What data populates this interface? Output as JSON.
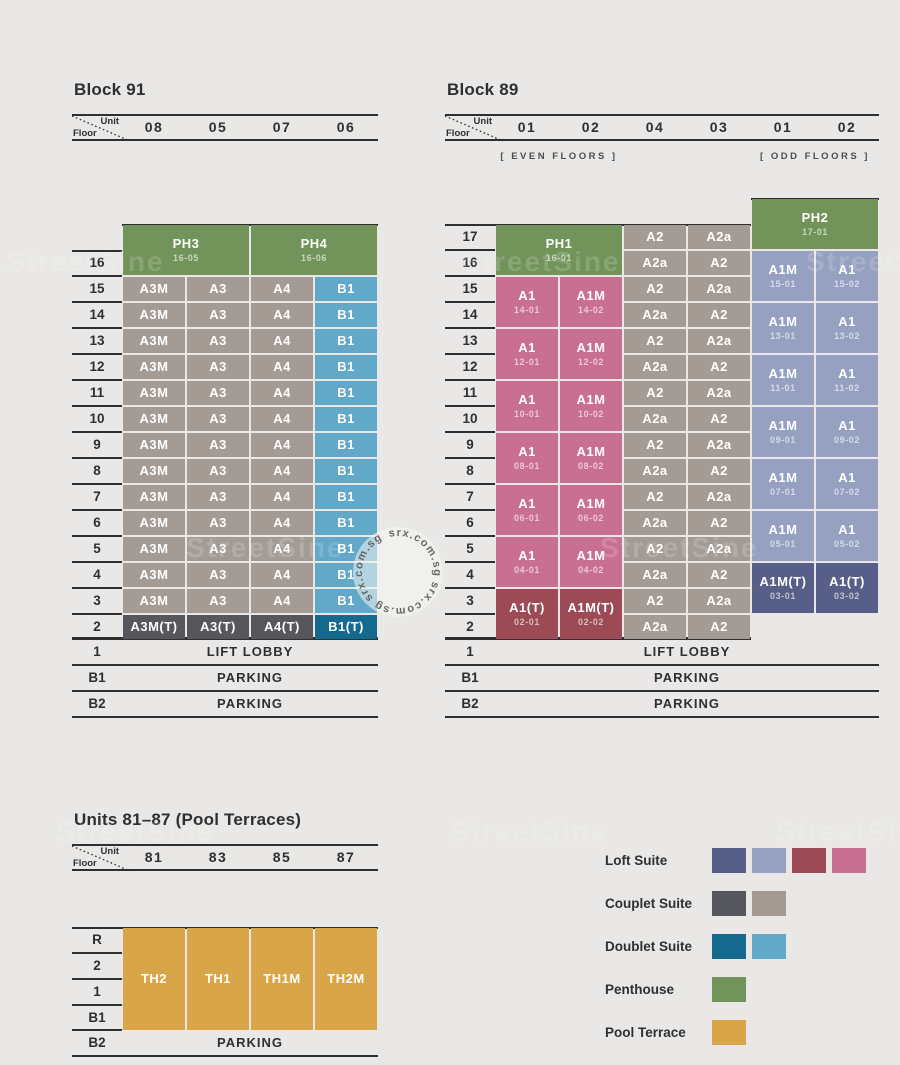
{
  "page": {
    "background": "#e9e8e6"
  },
  "palette": {
    "loft_dark_blue": "#575f88",
    "loft_light_blue": "#96a0c1",
    "loft_dark_red": "#9c4a55",
    "loft_pink": "#c96f91",
    "couplet_dark": "#56575c",
    "couplet_light": "#a49b95",
    "doublet_dark": "#14698f",
    "doublet_light": "#61a8c9",
    "penthouse": "#72935a",
    "pool_terrace": "#d8a548",
    "line": "#2f2f2f"
  },
  "corner": {
    "top": "Unit",
    "bottom": "Floor"
  },
  "watermark": {
    "stamp_text": "srx.com.sg",
    "background_text": "StreetSine"
  },
  "blocks": [
    {
      "id": "block91",
      "title": "Block 91",
      "units": [
        "08",
        "05",
        "07",
        "06"
      ],
      "floors": [
        "16",
        "15",
        "14",
        "13",
        "12",
        "11",
        "10",
        "9",
        "8",
        "7",
        "6",
        "5",
        "4",
        "3",
        "2"
      ],
      "cells": [
        {
          "label": "PH3",
          "sub": "16-05",
          "color": "penthouse",
          "col": 1,
          "colspan": 2,
          "row": 0,
          "rowspan": 2
        },
        {
          "label": "PH4",
          "sub": "16-06",
          "color": "penthouse",
          "col": 3,
          "colspan": 2,
          "row": 0,
          "rowspan": 2
        },
        {
          "label": "A3M(T)",
          "color": "couplet_dark",
          "col": 1,
          "row": 15
        },
        {
          "label": "A3(T)",
          "color": "couplet_dark",
          "col": 2,
          "row": 15
        },
        {
          "label": "A4(T)",
          "color": "couplet_dark",
          "col": 3,
          "row": 15
        },
        {
          "label": "B1(T)",
          "color": "doublet_dark",
          "col": 4,
          "row": 15
        }
      ],
      "repeat_rows": {
        "rows": [
          2,
          14
        ],
        "cells": [
          {
            "label": "A3M",
            "color": "couplet_light",
            "col": 1
          },
          {
            "label": "A3",
            "color": "couplet_light",
            "col": 2
          },
          {
            "label": "A4",
            "color": "couplet_light",
            "col": 3
          },
          {
            "label": "B1",
            "color": "doublet_light",
            "col": 4
          }
        ]
      },
      "bottom_rows": [
        {
          "floor": "1",
          "label": "LIFT LOBBY"
        },
        {
          "floor": "B1",
          "label": "PARKING"
        },
        {
          "floor": "B2",
          "label": "PARKING"
        }
      ]
    },
    {
      "id": "block89",
      "title": "Block 89",
      "units": [
        "01",
        "02",
        "04",
        "03",
        "01",
        "02"
      ],
      "unit_groups": [
        {
          "label": "[ EVEN FLOORS ]",
          "start": 1,
          "span": 2
        },
        {
          "label": "[ ODD FLOORS ]",
          "start": 5,
          "span": 2
        }
      ],
      "floors": [
        "17",
        "16",
        "15",
        "14",
        "13",
        "12",
        "11",
        "10",
        "9",
        "8",
        "7",
        "6",
        "5",
        "4",
        "3",
        "2"
      ],
      "mid_cols": [
        3,
        4
      ],
      "mid_color": "couplet_light",
      "mid_rows": [
        [
          "A2",
          "A2a"
        ],
        [
          "A2a",
          "A2"
        ],
        [
          "A2",
          "A2a"
        ],
        [
          "A2a",
          "A2"
        ],
        [
          "A2",
          "A2a"
        ],
        [
          "A2a",
          "A2"
        ],
        [
          "A2",
          "A2a"
        ],
        [
          "A2a",
          "A2"
        ],
        [
          "A2",
          "A2a"
        ],
        [
          "A2a",
          "A2"
        ],
        [
          "A2",
          "A2a"
        ],
        [
          "A2a",
          "A2"
        ],
        [
          "A2",
          "A2a"
        ],
        [
          "A2a",
          "A2"
        ],
        [
          "A2",
          "A2a"
        ],
        [
          "A2a",
          "A2"
        ]
      ],
      "cells": [
        {
          "label": "PH1",
          "sub": "16-01",
          "color": "penthouse",
          "col": 1,
          "colspan": 2,
          "row": 1,
          "rowspan": 2
        },
        {
          "label": "PH2",
          "sub": "17-01",
          "color": "penthouse",
          "col": 5,
          "colspan": 2,
          "row": 0,
          "rowspan": 2
        },
        {
          "label": "A1",
          "sub": "14-01",
          "color": "loft_pink",
          "col": 1,
          "row": 3,
          "rowspan": 2
        },
        {
          "label": "A1M",
          "sub": "14-02",
          "color": "loft_pink",
          "col": 2,
          "row": 3,
          "rowspan": 2
        },
        {
          "label": "A1",
          "sub": "12-01",
          "color": "loft_pink",
          "col": 1,
          "row": 5,
          "rowspan": 2
        },
        {
          "label": "A1M",
          "sub": "12-02",
          "color": "loft_pink",
          "col": 2,
          "row": 5,
          "rowspan": 2
        },
        {
          "label": "A1",
          "sub": "10-01",
          "color": "loft_pink",
          "col": 1,
          "row": 7,
          "rowspan": 2
        },
        {
          "label": "A1M",
          "sub": "10-02",
          "color": "loft_pink",
          "col": 2,
          "row": 7,
          "rowspan": 2
        },
        {
          "label": "A1",
          "sub": "08-01",
          "color": "loft_pink",
          "col": 1,
          "row": 9,
          "rowspan": 2
        },
        {
          "label": "A1M",
          "sub": "08-02",
          "color": "loft_pink",
          "col": 2,
          "row": 9,
          "rowspan": 2
        },
        {
          "label": "A1",
          "sub": "06-01",
          "color": "loft_pink",
          "col": 1,
          "row": 11,
          "rowspan": 2
        },
        {
          "label": "A1M",
          "sub": "06-02",
          "color": "loft_pink",
          "col": 2,
          "row": 11,
          "rowspan": 2
        },
        {
          "label": "A1",
          "sub": "04-01",
          "color": "loft_pink",
          "col": 1,
          "row": 13,
          "rowspan": 2
        },
        {
          "label": "A1M",
          "sub": "04-02",
          "color": "loft_pink",
          "col": 2,
          "row": 13,
          "rowspan": 2
        },
        {
          "label": "A1(T)",
          "sub": "02-01",
          "color": "loft_dark_red",
          "col": 1,
          "row": 15,
          "rowspan": 2
        },
        {
          "label": "A1M(T)",
          "sub": "02-02",
          "color": "loft_dark_red",
          "col": 2,
          "row": 15,
          "rowspan": 2
        },
        {
          "label": "A1M",
          "sub": "15-01",
          "color": "loft_light_blue",
          "col": 5,
          "row": 2,
          "rowspan": 2
        },
        {
          "label": "A1",
          "sub": "15-02",
          "color": "loft_light_blue",
          "col": 6,
          "row": 2,
          "rowspan": 2
        },
        {
          "label": "A1M",
          "sub": "13-01",
          "color": "loft_light_blue",
          "col": 5,
          "row": 4,
          "rowspan": 2
        },
        {
          "label": "A1",
          "sub": "13-02",
          "color": "loft_light_blue",
          "col": 6,
          "row": 4,
          "rowspan": 2
        },
        {
          "label": "A1M",
          "sub": "11-01",
          "color": "loft_light_blue",
          "col": 5,
          "row": 6,
          "rowspan": 2
        },
        {
          "label": "A1",
          "sub": "11-02",
          "color": "loft_light_blue",
          "col": 6,
          "row": 6,
          "rowspan": 2
        },
        {
          "label": "A1M",
          "sub": "09-01",
          "color": "loft_light_blue",
          "col": 5,
          "row": 8,
          "rowspan": 2
        },
        {
          "label": "A1",
          "sub": "09-02",
          "color": "loft_light_blue",
          "col": 6,
          "row": 8,
          "rowspan": 2
        },
        {
          "label": "A1M",
          "sub": "07-01",
          "color": "loft_light_blue",
          "col": 5,
          "row": 10,
          "rowspan": 2
        },
        {
          "label": "A1",
          "sub": "07-02",
          "color": "loft_light_blue",
          "col": 6,
          "row": 10,
          "rowspan": 2
        },
        {
          "label": "A1M",
          "sub": "05-01",
          "color": "loft_light_blue",
          "col": 5,
          "row": 12,
          "rowspan": 2
        },
        {
          "label": "A1",
          "sub": "05-02",
          "color": "loft_light_blue",
          "col": 6,
          "row": 12,
          "rowspan": 2
        },
        {
          "label": "A1M(T)",
          "sub": "03-01",
          "color": "loft_dark_blue",
          "col": 5,
          "row": 14,
          "rowspan": 2
        },
        {
          "label": "A1(T)",
          "sub": "03-02",
          "color": "loft_dark_blue",
          "col": 6,
          "row": 14,
          "rowspan": 2
        }
      ],
      "bottom_rows": [
        {
          "floor": "1",
          "label": "LIFT LOBBY"
        },
        {
          "floor": "B1",
          "label": "PARKING"
        },
        {
          "floor": "B2",
          "label": "PARKING"
        }
      ]
    },
    {
      "id": "terraces",
      "title": "Units 81–87 (Pool Terraces)",
      "units": [
        "81",
        "83",
        "85",
        "87"
      ],
      "floors": [
        "R",
        "2",
        "1",
        "B1"
      ],
      "cells": [
        {
          "label": "TH2",
          "color": "pool_terrace",
          "col": 1,
          "row": 1,
          "rowspan": 4
        },
        {
          "label": "TH1",
          "color": "pool_terrace",
          "col": 2,
          "row": 1,
          "rowspan": 4
        },
        {
          "label": "TH1M",
          "color": "pool_terrace",
          "col": 3,
          "row": 1,
          "rowspan": 4
        },
        {
          "label": "TH2M",
          "color": "pool_terrace",
          "col": 4,
          "row": 1,
          "rowspan": 4
        }
      ],
      "bottom_rows": [
        {
          "floor": "B2",
          "label": "PARKING"
        }
      ]
    }
  ],
  "legend": {
    "items": [
      {
        "label": "Loft Suite",
        "swatches": [
          "loft_dark_blue",
          "loft_light_blue",
          "loft_dark_red",
          "loft_pink"
        ]
      },
      {
        "label": "Couplet Suite",
        "swatches": [
          "couplet_dark",
          "couplet_light"
        ]
      },
      {
        "label": "Doublet Suite",
        "swatches": [
          "doublet_dark",
          "doublet_light"
        ]
      },
      {
        "label": "Penthouse",
        "swatches": [
          "penthouse"
        ]
      },
      {
        "label": "Pool Terrace",
        "swatches": [
          "pool_terrace"
        ]
      }
    ]
  }
}
